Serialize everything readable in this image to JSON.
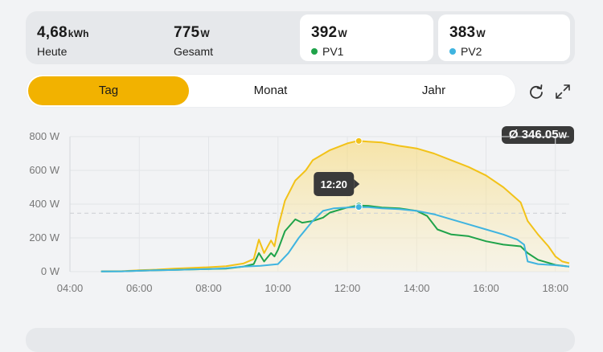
{
  "stats": [
    {
      "value": "4,68",
      "unit": "kWh",
      "label": "Heute"
    },
    {
      "value": "775",
      "unit": "W",
      "label": "Gesamt"
    },
    {
      "value": "392",
      "unit": "W",
      "label": "PV1",
      "color": "#1fa34a"
    },
    {
      "value": "383",
      "unit": "W",
      "label": "PV2",
      "color": "#3fb4e0"
    }
  ],
  "tabs": [
    {
      "label": "Tag",
      "active": true
    },
    {
      "label": "Monat",
      "active": false
    },
    {
      "label": "Jahr",
      "active": false
    }
  ],
  "toolbar": {
    "refresh_icon": "refresh-icon",
    "expand_icon": "expand-icon"
  },
  "average": {
    "symbol": "Ø",
    "value": "346.05",
    "unit": "W"
  },
  "tooltip": {
    "time": "12:20"
  },
  "colors": {
    "total": "#f2c218",
    "pv1": "#1fa34a",
    "pv2": "#3fb4e0",
    "accent": "#f2b200"
  },
  "chart_data": {
    "type": "line",
    "x_tick_labels": [
      "04:00",
      "06:00",
      "08:00",
      "10:00",
      "12:00",
      "14:00",
      "16:00",
      "18:00"
    ],
    "y_tick_labels": [
      "800 W",
      "600 W",
      "400 W",
      "200 W",
      "0 W"
    ],
    "xlim": [
      4,
      18.4
    ],
    "ylim": [
      0,
      800
    ],
    "average_line": 346.05,
    "highlight_x": 12.33,
    "grid": true,
    "series": [
      {
        "name": "Gesamt",
        "color": "#f2c218",
        "fill": true,
        "points": [
          [
            4.9,
            2
          ],
          [
            5.5,
            3
          ],
          [
            6,
            8
          ],
          [
            6.5,
            12
          ],
          [
            7,
            18
          ],
          [
            7.5,
            22
          ],
          [
            8,
            26
          ],
          [
            8.5,
            32
          ],
          [
            9,
            48
          ],
          [
            9.3,
            75
          ],
          [
            9.45,
            190
          ],
          [
            9.6,
            110
          ],
          [
            9.8,
            185
          ],
          [
            9.9,
            150
          ],
          [
            10,
            260
          ],
          [
            10.2,
            420
          ],
          [
            10.5,
            540
          ],
          [
            10.8,
            600
          ],
          [
            11,
            660
          ],
          [
            11.5,
            720
          ],
          [
            12,
            760
          ],
          [
            12.3,
            775
          ],
          [
            12.6,
            770
          ],
          [
            13,
            765
          ],
          [
            13.5,
            745
          ],
          [
            14,
            730
          ],
          [
            14.5,
            700
          ],
          [
            15,
            660
          ],
          [
            15.5,
            620
          ],
          [
            16,
            570
          ],
          [
            16.5,
            500
          ],
          [
            17,
            410
          ],
          [
            17.2,
            300
          ],
          [
            17.5,
            220
          ],
          [
            17.8,
            150
          ],
          [
            18,
            90
          ],
          [
            18.2,
            60
          ],
          [
            18.4,
            50
          ]
        ]
      },
      {
        "name": "PV1",
        "color": "#1fa34a",
        "fill": false,
        "points": [
          [
            4.9,
            1
          ],
          [
            5.5,
            2
          ],
          [
            6,
            5
          ],
          [
            6.5,
            8
          ],
          [
            7,
            10
          ],
          [
            7.5,
            13
          ],
          [
            8,
            15
          ],
          [
            8.5,
            18
          ],
          [
            9,
            30
          ],
          [
            9.3,
            45
          ],
          [
            9.45,
            110
          ],
          [
            9.6,
            60
          ],
          [
            9.8,
            110
          ],
          [
            9.9,
            90
          ],
          [
            10,
            130
          ],
          [
            10.2,
            240
          ],
          [
            10.5,
            310
          ],
          [
            10.7,
            290
          ],
          [
            11,
            300
          ],
          [
            11.3,
            320
          ],
          [
            11.5,
            350
          ],
          [
            12,
            380
          ],
          [
            12.3,
            392
          ],
          [
            12.6,
            390
          ],
          [
            13,
            380
          ],
          [
            13.5,
            375
          ],
          [
            14,
            360
          ],
          [
            14.3,
            330
          ],
          [
            14.6,
            250
          ],
          [
            15,
            220
          ],
          [
            15.5,
            210
          ],
          [
            16,
            180
          ],
          [
            16.5,
            160
          ],
          [
            17,
            150
          ],
          [
            17.2,
            110
          ],
          [
            17.5,
            70
          ],
          [
            18,
            40
          ],
          [
            18.4,
            30
          ]
        ]
      },
      {
        "name": "PV2",
        "color": "#3fb4e0",
        "fill": false,
        "points": [
          [
            4.9,
            1
          ],
          [
            5.5,
            2
          ],
          [
            6,
            5
          ],
          [
            6.5,
            8
          ],
          [
            7,
            10
          ],
          [
            7.5,
            13
          ],
          [
            8,
            15
          ],
          [
            8.5,
            20
          ],
          [
            9,
            30
          ],
          [
            9.5,
            35
          ],
          [
            10,
            45
          ],
          [
            10.3,
            110
          ],
          [
            10.6,
            200
          ],
          [
            11,
            300
          ],
          [
            11.3,
            360
          ],
          [
            11.6,
            375
          ],
          [
            12,
            380
          ],
          [
            12.3,
            383
          ],
          [
            12.6,
            382
          ],
          [
            13,
            375
          ],
          [
            13.5,
            370
          ],
          [
            14,
            360
          ],
          [
            14.5,
            340
          ],
          [
            15,
            310
          ],
          [
            15.5,
            280
          ],
          [
            16,
            250
          ],
          [
            16.5,
            220
          ],
          [
            16.9,
            190
          ],
          [
            17.1,
            160
          ],
          [
            17.2,
            60
          ],
          [
            17.5,
            45
          ],
          [
            18,
            38
          ],
          [
            18.4,
            30
          ]
        ]
      }
    ]
  }
}
